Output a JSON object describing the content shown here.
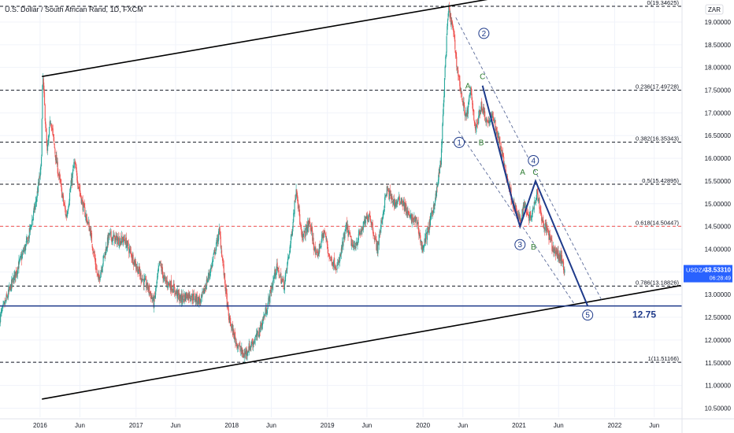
{
  "header": {
    "title": "U.S. Dollar / South African Rand, 1D, FXCM"
  },
  "currency_badge": "ZAR",
  "price_tag": {
    "symbol": "USDZAR",
    "price": "13.53310",
    "countdown": "06:28:49",
    "color": "#2962ff"
  },
  "target_label": "12.75",
  "colors": {
    "up": "#26a69a",
    "down": "#ef5350",
    "channel": "#000000",
    "wave": "#1e3a8a",
    "wave_label": "#2e7d32",
    "target_line": "#1e3a8a",
    "fib_0618": "#ef5350"
  },
  "chart_data": {
    "type": "candlestick",
    "title": "U.S. Dollar / South African Rand, 1D, FXCM",
    "y_axis": {
      "position": "right",
      "ylim": [
        10.3,
        19.45
      ],
      "ticks": [
        10.5,
        11.0,
        11.5,
        12.0,
        12.5,
        13.0,
        13.5,
        14.0,
        14.5,
        15.0,
        15.5,
        16.0,
        16.5,
        17.0,
        17.5,
        18.0,
        18.5,
        19.0
      ],
      "tick_labels": [
        "10.50000",
        "11.00000",
        "11.50000",
        "12.00000",
        "12.50000",
        "13.00000",
        "13.50000",
        "14.00000",
        "14.50000",
        "15.00000",
        "15.50000",
        "16.00000",
        "16.50000",
        "17.00000",
        "17.50000",
        "18.00000",
        "18.50000",
        "19.00000"
      ]
    },
    "x_axis": {
      "range": [
        "2015-08-01",
        "2022-09-15"
      ],
      "ticks": [
        {
          "date": "2016-01-01",
          "label": "2016"
        },
        {
          "date": "2016-06-01",
          "label": "Jun"
        },
        {
          "date": "2017-01-01",
          "label": "2017"
        },
        {
          "date": "2017-06-01",
          "label": "Jun"
        },
        {
          "date": "2018-01-01",
          "label": "2018"
        },
        {
          "date": "2018-06-01",
          "label": "Jun"
        },
        {
          "date": "2019-01-01",
          "label": "2019"
        },
        {
          "date": "2019-06-01",
          "label": "Jun"
        },
        {
          "date": "2020-01-01",
          "label": "2020"
        },
        {
          "date": "2020-06-01",
          "label": "Jun"
        },
        {
          "date": "2021-01-01",
          "label": "2021"
        },
        {
          "date": "2021-06-01",
          "label": "Jun"
        },
        {
          "date": "2022-01-01",
          "label": "2022"
        },
        {
          "date": "2022-06-01",
          "label": "Jun"
        }
      ]
    },
    "price_path": [
      [
        "2015-08-01",
        12.5
      ],
      [
        "2015-10-01",
        13.5
      ],
      [
        "2015-11-15",
        14.2
      ],
      [
        "2015-12-15",
        15.0
      ],
      [
        "2016-01-05",
        15.8
      ],
      [
        "2016-01-11",
        17.85
      ],
      [
        "2016-01-28",
        16.1
      ],
      [
        "2016-02-10",
        16.9
      ],
      [
        "2016-03-01",
        16.0
      ],
      [
        "2016-03-25",
        15.2
      ],
      [
        "2016-04-10",
        14.7
      ],
      [
        "2016-05-10",
        15.9
      ],
      [
        "2016-06-10",
        15.0
      ],
      [
        "2016-07-10",
        14.4
      ],
      [
        "2016-08-10",
        13.3
      ],
      [
        "2016-09-20",
        14.3
      ],
      [
        "2016-10-20",
        14.2
      ],
      [
        "2016-11-20",
        14.2
      ],
      [
        "2016-12-20",
        13.8
      ],
      [
        "2017-01-20",
        13.4
      ],
      [
        "2017-02-20",
        13.1
      ],
      [
        "2017-03-10",
        12.8
      ],
      [
        "2017-04-01",
        13.7
      ],
      [
        "2017-04-20",
        13.3
      ],
      [
        "2017-05-15",
        13.2
      ],
      [
        "2017-06-20",
        12.9
      ],
      [
        "2017-07-20",
        13.0
      ],
      [
        "2017-09-05",
        12.85
      ],
      [
        "2017-10-15",
        13.6
      ],
      [
        "2017-11-15",
        14.4
      ],
      [
        "2017-12-20",
        12.5
      ],
      [
        "2018-01-15",
        12.0
      ],
      [
        "2018-02-15",
        11.65
      ],
      [
        "2018-03-10",
        11.85
      ],
      [
        "2018-04-10",
        12.1
      ],
      [
        "2018-05-15",
        12.7
      ],
      [
        "2018-06-20",
        13.6
      ],
      [
        "2018-07-20",
        13.2
      ],
      [
        "2018-08-15",
        14.2
      ],
      [
        "2018-09-05",
        15.4
      ],
      [
        "2018-09-25",
        14.2
      ],
      [
        "2018-10-25",
        14.6
      ],
      [
        "2018-11-20",
        13.8
      ],
      [
        "2018-12-20",
        14.4
      ],
      [
        "2019-01-10",
        13.8
      ],
      [
        "2019-02-10",
        13.6
      ],
      [
        "2019-03-15",
        14.5
      ],
      [
        "2019-04-10",
        14.0
      ],
      [
        "2019-05-10",
        14.4
      ],
      [
        "2019-06-10",
        14.8
      ],
      [
        "2019-07-10",
        14.0
      ],
      [
        "2019-08-15",
        15.3
      ],
      [
        "2019-09-15",
        15.0
      ],
      [
        "2019-10-10",
        15.1
      ],
      [
        "2019-11-10",
        14.7
      ],
      [
        "2019-12-10",
        14.6
      ],
      [
        "2019-12-28",
        14.0
      ],
      [
        "2020-01-20",
        14.4
      ],
      [
        "2020-02-20",
        15.2
      ],
      [
        "2020-03-10",
        16.0
      ],
      [
        "2020-03-25",
        18.0
      ],
      [
        "2020-04-07",
        19.3
      ],
      [
        "2020-04-25",
        18.8
      ],
      [
        "2020-05-10",
        18.0
      ],
      [
        "2020-06-01",
        17.2
      ],
      [
        "2020-06-15",
        16.9
      ],
      [
        "2020-07-01",
        17.5
      ],
      [
        "2020-07-20",
        16.6
      ],
      [
        "2020-08-10",
        17.2
      ],
      [
        "2020-09-01",
        16.8
      ],
      [
        "2020-09-25",
        16.9
      ],
      [
        "2020-10-20",
        16.3
      ],
      [
        "2020-11-15",
        15.6
      ],
      [
        "2020-12-10",
        15.0
      ],
      [
        "2021-01-05",
        14.6
      ],
      [
        "2021-01-20",
        15.0
      ],
      [
        "2021-02-10",
        14.7
      ],
      [
        "2021-02-25",
        14.9
      ],
      [
        "2021-03-10",
        15.3
      ],
      [
        "2021-04-01",
        14.6
      ],
      [
        "2021-04-20",
        14.4
      ],
      [
        "2021-05-10",
        14.0
      ],
      [
        "2021-06-10",
        13.8
      ],
      [
        "2021-06-25",
        13.53
      ]
    ],
    "fibonacci": [
      {
        "ratio": 0,
        "price": 19.34625,
        "label": "0(19.34625)"
      },
      {
        "ratio": 0.236,
        "price": 17.49728,
        "label": "0.236(17.49728)"
      },
      {
        "ratio": 0.382,
        "price": 16.35343,
        "label": "0.382(16.35343)"
      },
      {
        "ratio": 0.5,
        "price": 15.42895,
        "label": "0.5(15.42895)"
      },
      {
        "ratio": 0.618,
        "price": 14.50447,
        "label": "0.618(14.50447)"
      },
      {
        "ratio": 0.786,
        "price": 13.18826,
        "label": "0.786(13.18826)"
      },
      {
        "ratio": 1,
        "price": 11.51166,
        "label": "1(11.51166)"
      }
    ],
    "channel_lines": [
      {
        "name": "upper",
        "points": [
          [
            "2016-01-08",
            17.8
          ],
          [
            "2020-09-05",
            19.5
          ]
        ]
      },
      {
        "name": "lower",
        "points": [
          [
            "2016-01-08",
            10.7
          ],
          [
            "2022-09-10",
            13.2
          ]
        ]
      }
    ],
    "target_level": 12.75,
    "wave_labels": [
      {
        "text": "1",
        "date": "2020-05-18",
        "price": 16.35,
        "circled": true
      },
      {
        "text": "2",
        "date": "2020-08-20",
        "price": 18.75,
        "circled": true
      },
      {
        "text": "3",
        "date": "2021-01-05",
        "price": 14.1,
        "circled": true
      },
      {
        "text": "4",
        "date": "2021-02-25",
        "price": 15.95,
        "circled": true
      },
      {
        "text": "5",
        "date": "2021-09-20",
        "price": 12.55,
        "circled": true
      },
      {
        "text": "A",
        "date": "2020-06-20",
        "price": 17.6,
        "circled": false
      },
      {
        "text": "B",
        "date": "2020-08-10",
        "price": 16.35,
        "circled": false
      },
      {
        "text": "C",
        "date": "2020-08-15",
        "price": 17.8,
        "circled": false
      },
      {
        "text": "A",
        "date": "2021-01-15",
        "price": 15.7,
        "circled": false
      },
      {
        "text": "B",
        "date": "2021-02-25",
        "price": 14.05,
        "circled": false
      },
      {
        "text": "C",
        "date": "2021-03-05",
        "price": 15.7,
        "circled": false
      }
    ],
    "wave_path": [
      [
        "2020-08-15",
        17.6
      ],
      [
        "2020-12-10",
        15.0
      ],
      [
        "2021-01-05",
        14.5
      ],
      [
        "2021-03-05",
        15.5
      ],
      [
        "2021-09-20",
        12.75
      ]
    ],
    "projection_channel": [
      {
        "points": [
          [
            "2020-05-05",
            19.1
          ],
          [
            "2021-11-15",
            12.85
          ]
        ]
      },
      {
        "points": [
          [
            "2020-05-15",
            16.6
          ],
          [
            "2021-08-05",
            12.75
          ]
        ]
      }
    ]
  }
}
